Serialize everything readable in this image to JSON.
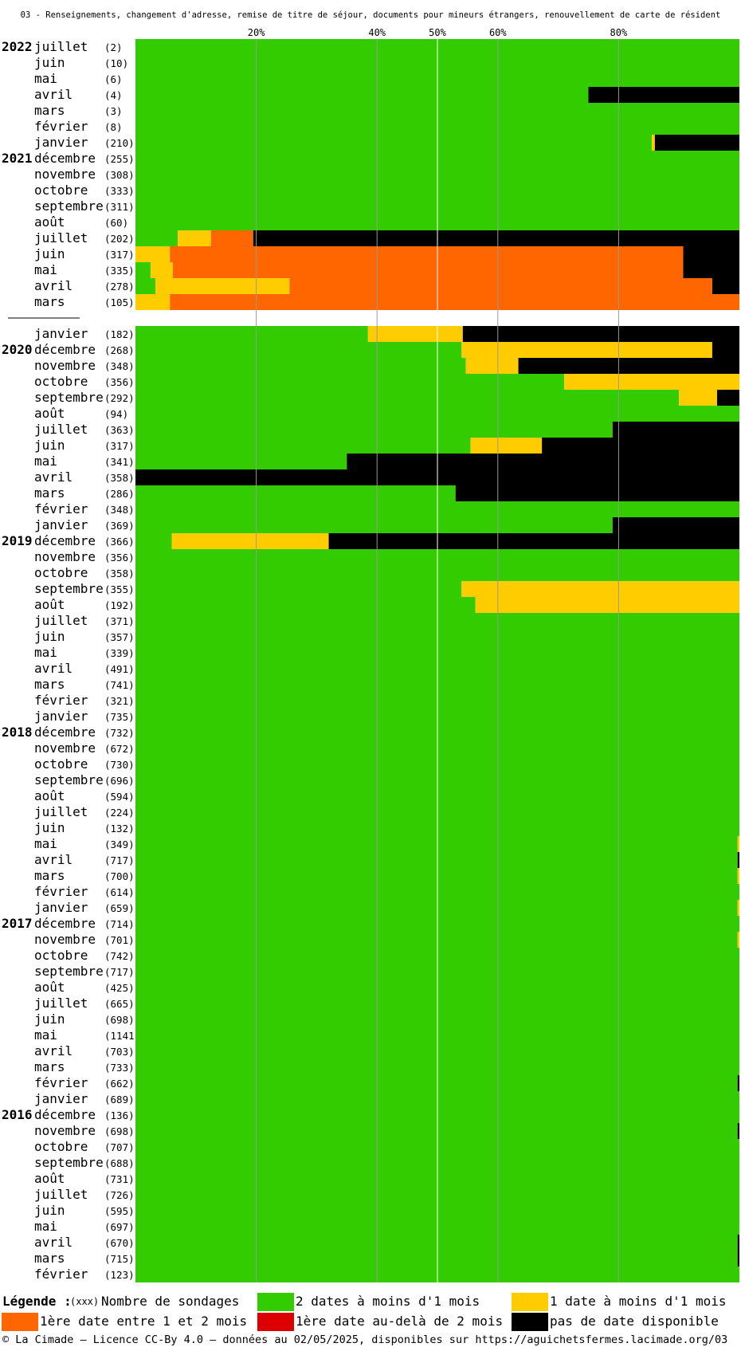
{
  "chart_data": {
    "type": "bar",
    "orientation": "horizontal-stacked-100",
    "title": "03 - Renseignements, changement d'adresse, remise de titre de séjour, documents pour mineurs étrangers, renouvellement de carte de résident",
    "xticks": [
      "20%",
      "40%",
      "50%",
      "60%",
      "80%"
    ],
    "xlim": [
      0,
      100
    ],
    "categories_order": [
      "green",
      "yellow",
      "orange",
      "red",
      "black"
    ],
    "colors": {
      "green": "#33cc00",
      "yellow": "#ffcc00",
      "orange": "#ff6600",
      "red": "#dd0000",
      "black": "#000000",
      "grid": "#999999",
      "grid50": "#ffffff"
    },
    "rows": [
      {
        "year": "2022",
        "month": "juillet",
        "count": "(2)",
        "values": [
          100,
          0,
          0,
          0,
          0
        ]
      },
      {
        "year": "",
        "month": "juin",
        "count": "(10)",
        "values": [
          100,
          0,
          0,
          0,
          0
        ]
      },
      {
        "year": "",
        "month": "mai",
        "count": "(6)",
        "values": [
          100,
          0,
          0,
          0,
          0
        ]
      },
      {
        "year": "",
        "month": "avril",
        "count": "(4)",
        "values": [
          75,
          0,
          0,
          0,
          25
        ]
      },
      {
        "year": "",
        "month": "mars",
        "count": "(3)",
        "values": [
          100,
          0,
          0,
          0,
          0
        ]
      },
      {
        "year": "",
        "month": "février",
        "count": "(8)",
        "values": [
          100,
          0,
          0,
          0,
          0
        ]
      },
      {
        "year": "",
        "month": "janvier",
        "count": "(210)",
        "values": [
          85.5,
          0.5,
          0,
          0,
          14
        ]
      },
      {
        "year": "2021",
        "month": "décembre",
        "count": "(255)",
        "values": [
          100,
          0,
          0,
          0,
          0
        ]
      },
      {
        "year": "",
        "month": "novembre",
        "count": "(308)",
        "values": [
          100,
          0,
          0,
          0,
          0
        ]
      },
      {
        "year": "",
        "month": "octobre",
        "count": "(333)",
        "values": [
          100,
          0,
          0,
          0,
          0
        ]
      },
      {
        "year": "",
        "month": "septembre",
        "count": "(311)",
        "values": [
          100,
          0,
          0,
          0,
          0
        ]
      },
      {
        "year": "",
        "month": "août",
        "count": "(60)",
        "values": [
          100,
          0,
          0,
          0,
          0
        ]
      },
      {
        "year": "",
        "month": "juillet",
        "count": "(202)",
        "values": [
          7,
          5.5,
          7,
          0,
          80.5
        ]
      },
      {
        "year": "",
        "month": "juin",
        "count": "(317)",
        "values": [
          0,
          5.7,
          85,
          0,
          9.3
        ]
      },
      {
        "year": "",
        "month": "mai",
        "count": "(335)",
        "values": [
          2.5,
          3.7,
          84.5,
          0,
          9.3
        ]
      },
      {
        "year": "",
        "month": "avril",
        "count": "(278)",
        "values": [
          3.3,
          22.2,
          70,
          0,
          4.5
        ]
      },
      {
        "year": "",
        "month": "mars",
        "count": "(105)",
        "values": [
          0,
          5.7,
          94.3,
          0,
          0
        ]
      },
      {
        "gap": true
      },
      {
        "year": "",
        "month": "janvier",
        "count": "(182)",
        "values": [
          38.5,
          15.7,
          0,
          0,
          45.8
        ]
      },
      {
        "year": "2020",
        "month": "décembre",
        "count": "(268)",
        "values": [
          54,
          41.5,
          0,
          0,
          4.5
        ]
      },
      {
        "year": "",
        "month": "novembre",
        "count": "(348)",
        "values": [
          54.7,
          8.7,
          0,
          0,
          36.6
        ]
      },
      {
        "year": "",
        "month": "octobre",
        "count": "(356)",
        "values": [
          71,
          29,
          0,
          0,
          0
        ]
      },
      {
        "year": "",
        "month": "septembre",
        "count": "(292)",
        "values": [
          90,
          6.3,
          0,
          0,
          3.7
        ]
      },
      {
        "year": "",
        "month": "août",
        "count": "(94)",
        "values": [
          100,
          0,
          0,
          0,
          0
        ]
      },
      {
        "year": "",
        "month": "juillet",
        "count": "(363)",
        "values": [
          79,
          0,
          0,
          0,
          21
        ]
      },
      {
        "year": "",
        "month": "juin",
        "count": "(317)",
        "values": [
          55.5,
          11.8,
          0,
          0,
          32.7
        ]
      },
      {
        "year": "",
        "month": "mai",
        "count": "(341)",
        "values": [
          35,
          0,
          0,
          0,
          65
        ]
      },
      {
        "year": "",
        "month": "avril",
        "count": "(358)",
        "values": [
          0,
          0,
          0,
          0,
          100
        ]
      },
      {
        "year": "",
        "month": "mars",
        "count": "(286)",
        "values": [
          53,
          0,
          0,
          0,
          47
        ]
      },
      {
        "year": "",
        "month": "février",
        "count": "(348)",
        "values": [
          100,
          0,
          0,
          0,
          0
        ]
      },
      {
        "year": "",
        "month": "janvier",
        "count": "(369)",
        "values": [
          79,
          0,
          0,
          0,
          21
        ]
      },
      {
        "year": "2019",
        "month": "décembre",
        "count": "(366)",
        "values": [
          6,
          26,
          0,
          0,
          68
        ]
      },
      {
        "year": "",
        "month": "novembre",
        "count": "(356)",
        "values": [
          100,
          0,
          0,
          0,
          0
        ]
      },
      {
        "year": "",
        "month": "octobre",
        "count": "(358)",
        "values": [
          100,
          0,
          0,
          0,
          0
        ]
      },
      {
        "year": "",
        "month": "septembre",
        "count": "(355)",
        "values": [
          54,
          46,
          0,
          0,
          0
        ]
      },
      {
        "year": "",
        "month": "août",
        "count": "(192)",
        "values": [
          56.3,
          43.7,
          0,
          0,
          0
        ]
      },
      {
        "year": "",
        "month": "juillet",
        "count": "(371)",
        "values": [
          100,
          0,
          0,
          0,
          0
        ]
      },
      {
        "year": "",
        "month": "juin",
        "count": "(357)",
        "values": [
          100,
          0,
          0,
          0,
          0
        ]
      },
      {
        "year": "",
        "month": "mai",
        "count": "(339)",
        "values": [
          100,
          0,
          0,
          0,
          0
        ]
      },
      {
        "year": "",
        "month": "avril",
        "count": "(491)",
        "values": [
          100,
          0,
          0,
          0,
          0
        ]
      },
      {
        "year": "",
        "month": "mars",
        "count": "(741)",
        "values": [
          100,
          0,
          0,
          0,
          0
        ]
      },
      {
        "year": "",
        "month": "février",
        "count": "(321)",
        "values": [
          100,
          0,
          0,
          0,
          0
        ]
      },
      {
        "year": "",
        "month": "janvier",
        "count": "(735)",
        "values": [
          100,
          0,
          0,
          0,
          0
        ]
      },
      {
        "year": "2018",
        "month": "décembre",
        "count": "(732)",
        "values": [
          100,
          0,
          0,
          0,
          0
        ]
      },
      {
        "year": "",
        "month": "novembre",
        "count": "(672)",
        "values": [
          100,
          0,
          0,
          0,
          0
        ]
      },
      {
        "year": "",
        "month": "octobre",
        "count": "(730)",
        "values": [
          100,
          0,
          0,
          0,
          0
        ]
      },
      {
        "year": "",
        "month": "septembre",
        "count": "(696)",
        "values": [
          100,
          0,
          0,
          0,
          0
        ]
      },
      {
        "year": "",
        "month": "août",
        "count": "(594)",
        "values": [
          100,
          0,
          0,
          0,
          0
        ]
      },
      {
        "year": "",
        "month": "juillet",
        "count": "(224)",
        "values": [
          100,
          0,
          0,
          0,
          0
        ]
      },
      {
        "year": "",
        "month": "juin",
        "count": "(132)",
        "values": [
          100,
          0,
          0,
          0,
          0
        ]
      },
      {
        "year": "",
        "month": "mai",
        "count": "(349)",
        "values": [
          99.7,
          0.3,
          0,
          0,
          0
        ]
      },
      {
        "year": "",
        "month": "avril",
        "count": "(717)",
        "values": [
          99.7,
          0,
          0,
          0,
          0.3
        ]
      },
      {
        "year": "",
        "month": "mars",
        "count": "(700)",
        "values": [
          99.7,
          0.3,
          0,
          0,
          0
        ]
      },
      {
        "year": "",
        "month": "février",
        "count": "(614)",
        "values": [
          100,
          0,
          0,
          0,
          0
        ]
      },
      {
        "year": "",
        "month": "janvier",
        "count": "(659)",
        "values": [
          99.7,
          0.3,
          0,
          0,
          0
        ]
      },
      {
        "year": "2017",
        "month": "décembre",
        "count": "(714)",
        "values": [
          100,
          0,
          0,
          0,
          0
        ]
      },
      {
        "year": "",
        "month": "novembre",
        "count": "(701)",
        "values": [
          99.7,
          0.3,
          0,
          0,
          0
        ]
      },
      {
        "year": "",
        "month": "octobre",
        "count": "(742)",
        "values": [
          100,
          0,
          0,
          0,
          0
        ]
      },
      {
        "year": "",
        "month": "septembre",
        "count": "(717)",
        "values": [
          100,
          0,
          0,
          0,
          0
        ]
      },
      {
        "year": "",
        "month": "août",
        "count": "(425)",
        "values": [
          100,
          0,
          0,
          0,
          0
        ]
      },
      {
        "year": "",
        "month": "juillet",
        "count": "(665)",
        "values": [
          100,
          0,
          0,
          0,
          0
        ]
      },
      {
        "year": "",
        "month": "juin",
        "count": "(698)",
        "values": [
          100,
          0,
          0,
          0,
          0
        ]
      },
      {
        "year": "",
        "month": "mai",
        "count": "(1141",
        "values": [
          100,
          0,
          0,
          0,
          0
        ]
      },
      {
        "year": "",
        "month": "avril",
        "count": "(703)",
        "values": [
          100,
          0,
          0,
          0,
          0
        ]
      },
      {
        "year": "",
        "month": "mars",
        "count": "(733)",
        "values": [
          100,
          0,
          0,
          0,
          0
        ]
      },
      {
        "year": "",
        "month": "février",
        "count": "(662)",
        "values": [
          99.7,
          0,
          0,
          0,
          0.3
        ]
      },
      {
        "year": "",
        "month": "janvier",
        "count": "(689)",
        "values": [
          100,
          0,
          0,
          0,
          0
        ]
      },
      {
        "year": "2016",
        "month": "décembre",
        "count": "(136)",
        "values": [
          100,
          0,
          0,
          0,
          0
        ]
      },
      {
        "year": "",
        "month": "novembre",
        "count": "(698)",
        "values": [
          99.7,
          0,
          0,
          0,
          0.3
        ]
      },
      {
        "year": "",
        "month": "octobre",
        "count": "(707)",
        "values": [
          100,
          0,
          0,
          0,
          0
        ]
      },
      {
        "year": "",
        "month": "septembre",
        "count": "(688)",
        "values": [
          100,
          0,
          0,
          0,
          0
        ]
      },
      {
        "year": "",
        "month": "août",
        "count": "(731)",
        "values": [
          100,
          0,
          0,
          0,
          0
        ]
      },
      {
        "year": "",
        "month": "juillet",
        "count": "(726)",
        "values": [
          100,
          0,
          0,
          0,
          0
        ]
      },
      {
        "year": "",
        "month": "juin",
        "count": "(595)",
        "values": [
          100,
          0,
          0,
          0,
          0
        ]
      },
      {
        "year": "",
        "month": "mai",
        "count": "(697)",
        "values": [
          100,
          0,
          0,
          0,
          0
        ]
      },
      {
        "year": "",
        "month": "avril",
        "count": "(670)",
        "values": [
          99.7,
          0,
          0,
          0,
          0.3
        ]
      },
      {
        "year": "",
        "month": "mars",
        "count": "(715)",
        "values": [
          99.7,
          0,
          0,
          0,
          0.3
        ]
      },
      {
        "year": "",
        "month": "février",
        "count": "(123)",
        "values": [
          100,
          0,
          0,
          0,
          0
        ]
      }
    ]
  },
  "legend": {
    "title": "Légende :",
    "count_hint": "(xxx)",
    "count_label": "Nombre de sondages",
    "items": [
      {
        "key": "green",
        "label": "2 dates à moins d'1 mois"
      },
      {
        "key": "yellow",
        "label": "1 date à moins d'1 mois"
      },
      {
        "key": "orange",
        "label": "1ère date entre 1 et 2 mois"
      },
      {
        "key": "red",
        "label": "1ère date au-delà de 2 mois"
      },
      {
        "key": "black",
        "label": "pas de date disponible"
      }
    ]
  },
  "footer": "© La Cimade — Licence CC-By 4.0 — données au 02/05/2025, disponibles sur https://aguichetsfermes.lacimade.org/03"
}
